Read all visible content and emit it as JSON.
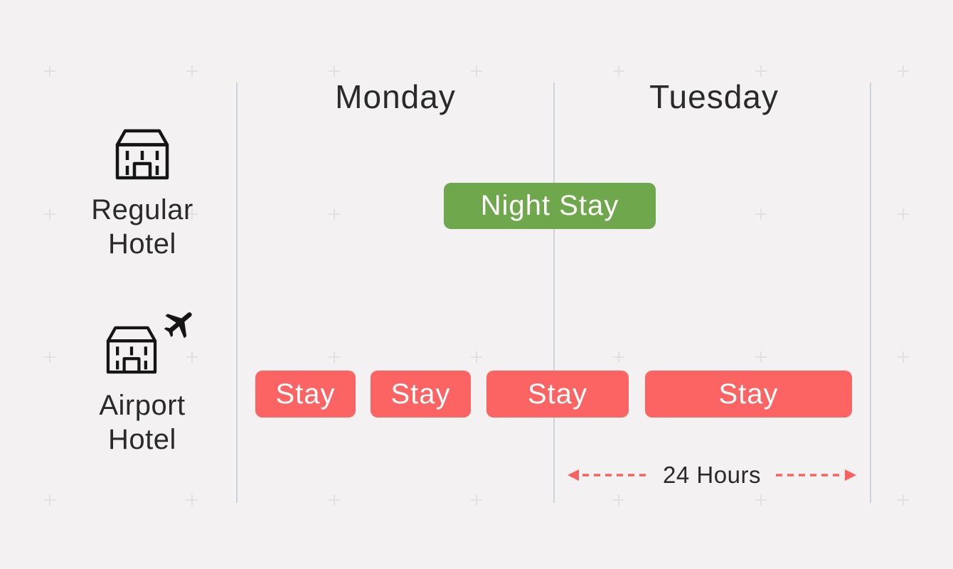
{
  "columns": [
    {
      "label": "Monday"
    },
    {
      "label": "Tuesday"
    }
  ],
  "rows": [
    {
      "icon": "hotel-building-icon",
      "label": {
        "line1": "Regular",
        "line2": "Hotel"
      },
      "bands": [
        {
          "label": "Night Stay",
          "type": "night",
          "color": "#6FA84C",
          "spans": "Monday evening to Tuesday morning"
        }
      ]
    },
    {
      "icon": "hotel-building-with-airplane-icon",
      "label": {
        "line1": "Airport",
        "line2": "Hotel"
      },
      "bands": [
        {
          "label": "Stay",
          "type": "stay",
          "color": "#FC6363"
        },
        {
          "label": "Stay",
          "type": "stay",
          "color": "#FC6363"
        },
        {
          "label": "Stay",
          "type": "stay",
          "color": "#FC6363"
        },
        {
          "label": "Stay",
          "type": "stay",
          "color": "#FC6363"
        }
      ]
    }
  ],
  "annotation": {
    "label": "24 Hours",
    "icon": "dashed-double-arrow-icon"
  },
  "colors": {
    "background": "#F3F1F1",
    "night_stay_fill": "#6FA84C",
    "stay_fill": "#FC6363",
    "band_text": "#FFFFFF",
    "text": "#2A2A2A",
    "divider": "#CBD4DA",
    "plus_mark": "#E2E1E1",
    "arrow": "#F96060",
    "icon_stroke": "#151515"
  }
}
